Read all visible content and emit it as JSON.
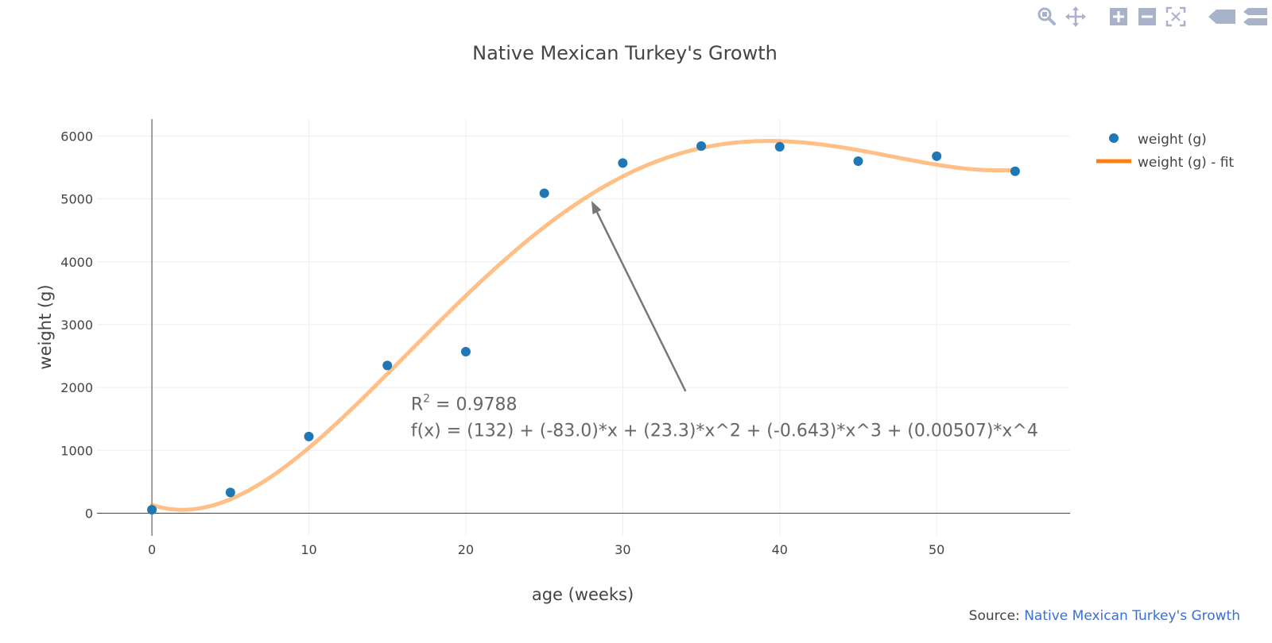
{
  "modebar": {
    "buttons": [
      {
        "name": "zoom-icon"
      },
      {
        "name": "pan-icon"
      },
      {
        "name": "zoom-in-icon"
      },
      {
        "name": "zoom-out-icon"
      },
      {
        "name": "autoscale-icon"
      },
      {
        "name": "hover-closest-icon"
      },
      {
        "name": "hover-compare-icon"
      }
    ],
    "color": "#a8b3c9"
  },
  "source": {
    "label": "Source: ",
    "link_text": "Native Mexican Turkey's Growth"
  },
  "chart_data": {
    "type": "scatter",
    "title": "Native Mexican Turkey's Growth",
    "xlabel": "age (weeks)",
    "ylabel": "weight (g)",
    "xlim": [
      -3.5,
      58.5
    ],
    "ylim": [
      -360,
      6270
    ],
    "xticks": [
      0,
      10,
      20,
      30,
      40,
      50
    ],
    "yticks": [
      0,
      1000,
      2000,
      3000,
      4000,
      5000,
      6000
    ],
    "grid": true,
    "legend_position": "top-right",
    "series": [
      {
        "name": "weight (g)",
        "mode": "markers",
        "color": "#1f77b4",
        "x": [
          0,
          5,
          10,
          15,
          20,
          25,
          30,
          35,
          40,
          45,
          50,
          55
        ],
        "y": [
          55,
          330,
          1220,
          2350,
          2570,
          5090,
          5570,
          5840,
          5830,
          5600,
          5680,
          5440
        ]
      },
      {
        "name": "weight (g) - fit",
        "mode": "line",
        "color": "#ff7f0e",
        "line_opacity": 0.5,
        "legend_opacity": 1,
        "coefficients": [
          132,
          -83.0,
          23.3,
          -0.643,
          0.00507
        ],
        "x_range": [
          0,
          55
        ]
      }
    ],
    "annotations": [
      {
        "r2_base": "R",
        "r2_sup": "2",
        "r2_rest": " = 0.9788",
        "formula": "f(x) = (132) + (-83.0)*x + (23.3)*x^2 + (-0.643)*x^3 + (0.00507)*x^4",
        "text_anchor": [
          16.5,
          1640
        ],
        "arrow_tail": [
          34,
          1940
        ],
        "arrow_head": [
          28,
          4970
        ],
        "color": "#666666"
      }
    ]
  }
}
